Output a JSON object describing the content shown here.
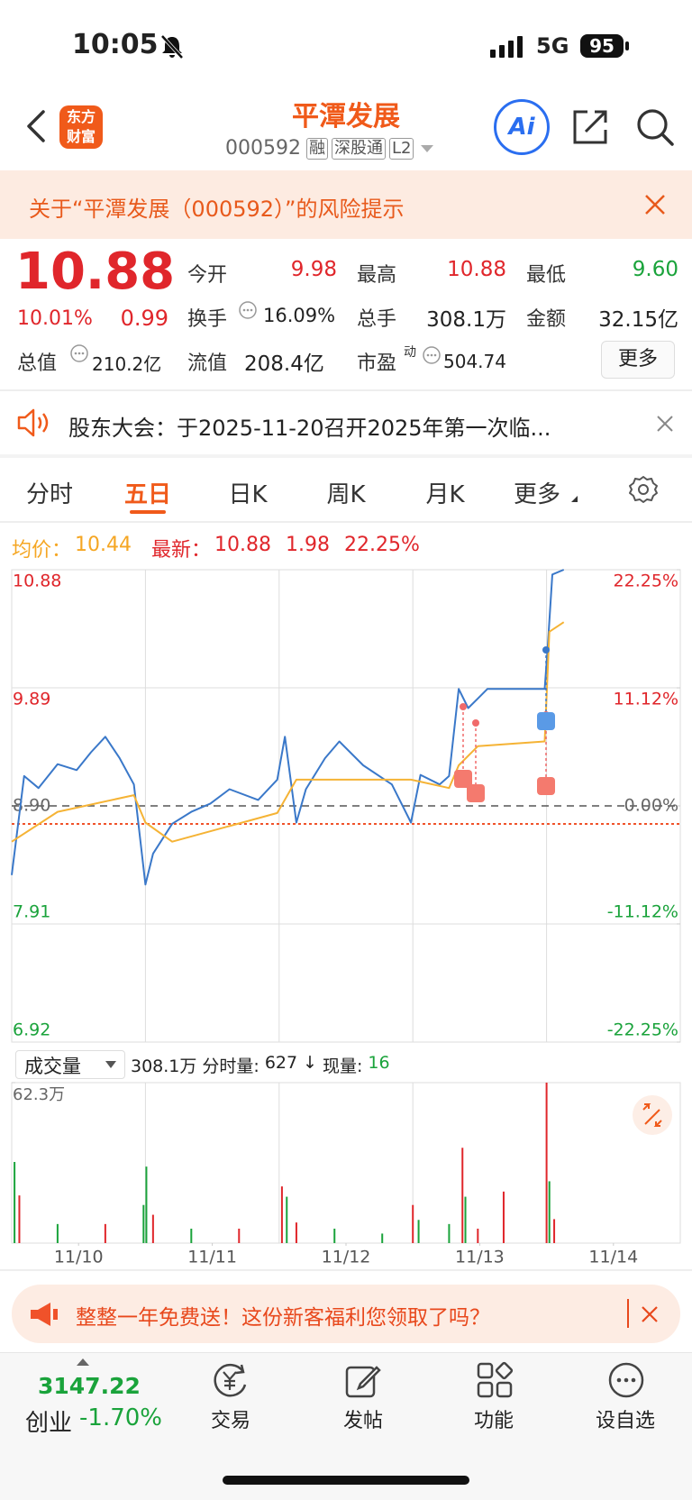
{
  "status": {
    "time": "10:05",
    "network": "5G",
    "battery": "95"
  },
  "header": {
    "logo_line1": "东方",
    "logo_line2": "财富",
    "title": "平潭发展",
    "code": "000592",
    "tags": [
      "融",
      "深股通",
      "L2"
    ],
    "ai": "Ai"
  },
  "risk_banner": {
    "text": "关于“平潭发展（000592）”的风险提示"
  },
  "quote": {
    "price": "10.88",
    "change_pct": "10.01%",
    "change": "0.99",
    "open_label": "今开",
    "open": "9.98",
    "high_label": "最高",
    "high": "10.88",
    "low_label": "最低",
    "low": "9.60",
    "turnover_label": "换手",
    "turnover": "16.09%",
    "volume_label": "总手",
    "volume": "308.1万",
    "amount_label": "金额",
    "amount": "32.15亿",
    "cap_label": "总值",
    "cap": "210.2亿",
    "float_label": "流值",
    "float": "208.4亿",
    "pe_label": "市盈",
    "pe_sup": "动",
    "pe": "504.74",
    "more": "更多"
  },
  "notice": {
    "text": "股东大会：于2025-11-20召开2025年第一次临..."
  },
  "tabs": {
    "items": [
      "分时",
      "五日",
      "日K",
      "周K",
      "月K",
      "更多"
    ],
    "active": 1
  },
  "stats": {
    "avg_label": "均价：",
    "avg": "10.44",
    "latest_label": "最新：",
    "latest": "10.88",
    "change": "1.98",
    "pct": "22.25%"
  },
  "chart_data": [
    {
      "type": "line",
      "xlim": [
        0,
        5
      ],
      "ylim": [
        6.92,
        10.88
      ],
      "yticks": [
        6.92,
        7.91,
        {
          "value": 8.9,
          "label": "8.90"
        },
        9.89,
        10.88
      ],
      "y2lim": [
        -22.25,
        22.25
      ],
      "y2ticks": [
        {
          "value": -22.25,
          "label": "-22.25%"
        },
        {
          "value": -11.12,
          "label": "-11.12%"
        },
        {
          "value": 0,
          "label": "0.00%"
        },
        {
          "value": 11.12,
          "label": "11.12%"
        },
        {
          "value": 22.25,
          "label": "22.25%"
        }
      ],
      "up_color": "#e0262b",
      "down_color": "#1aa33b",
      "series": [
        {
          "color": "#3a78c9",
          "x": [
            0,
            0.093,
            0.2,
            0.343,
            0.486,
            0.593,
            0.7,
            0.807,
            0.914,
            1.0,
            1.057,
            1.2,
            1.343,
            1.486,
            1.629,
            1.843,
            1.986,
            2.043,
            2.129,
            2.2,
            2.343,
            2.45,
            2.629,
            2.843,
            2.986,
            3.057,
            3.2,
            3.271,
            3.343,
            3.414,
            3.486,
            3.557,
            3.664,
            3.986,
            4.007,
            4.043,
            4.129
          ],
          "values": [
            8.32,
            9.15,
            9.05,
            9.25,
            9.2,
            9.35,
            9.48,
            9.3,
            9.08,
            8.24,
            8.5,
            8.75,
            8.85,
            8.92,
            9.04,
            8.95,
            9.12,
            9.48,
            8.76,
            9.04,
            9.3,
            9.44,
            9.24,
            9.08,
            8.76,
            9.16,
            9.08,
            9.15,
            9.88,
            9.72,
            9.8,
            9.88,
            9.88,
            9.88,
            10.2,
            10.84,
            10.88
          ]
        },
        {
          "color": "#f5b335",
          "x": [
            0,
            0.343,
            0.914,
            1.0,
            1.2,
            1.986,
            2.129,
            2.986,
            3.271,
            3.343,
            3.486,
            3.986,
            4.021,
            4.129
          ],
          "values": [
            8.6,
            8.85,
            8.99,
            8.76,
            8.6,
            8.84,
            9.12,
            9.12,
            9.05,
            9.24,
            9.4,
            9.44,
            10.36,
            10.44
          ]
        }
      ]
    },
    {
      "type": "bar",
      "title": "成交量",
      "total": "308.1万",
      "split_label": "分时量:",
      "split": "627",
      "arrow": "↓",
      "now_label": "现量:",
      "now": "16",
      "xlim": [
        0,
        5
      ],
      "xticks": [
        {
          "value": 0.5,
          "label": "11/10"
        },
        {
          "value": 1.5,
          "label": "11/11"
        },
        {
          "value": 2.5,
          "label": "11/12"
        },
        {
          "value": 3.5,
          "label": "11/13"
        },
        {
          "value": 4.5,
          "label": "11/14"
        }
      ],
      "ylim": [
        0,
        62.3
      ],
      "yticks": [
        {
          "value": 62.3,
          "label": "62.3万"
        }
      ],
      "x": [
        0.021,
        0.057,
        0.343,
        0.7,
        0.986,
        1.007,
        1.057,
        1.343,
        1.7,
        2.021,
        2.057,
        2.129,
        2.414,
        2.771,
        3.0,
        3.043,
        3.271,
        3.371,
        3.393,
        3.486,
        3.679,
        4.0,
        4.021,
        4.057
      ],
      "values": [
        31.5,
        18.5,
        7.4,
        7.4,
        14.8,
        29.7,
        11,
        5.6,
        5.6,
        22,
        18,
        8,
        5.6,
        3.7,
        14.8,
        9,
        7.4,
        37,
        18,
        5.6,
        20,
        62.3,
        24,
        9.3
      ],
      "colors": [
        "#1aa33b",
        "#e0262b",
        "#1aa33b",
        "#e0262b",
        "#1aa33b",
        "#1aa33b",
        "#e0262b",
        "#1aa33b",
        "#e0262b",
        "#e0262b",
        "#1aa33b",
        "#e0262b",
        "#1aa33b",
        "#1aa33b",
        "#e0262b",
        "#1aa33b",
        "#1aa33b",
        "#e0262b",
        "#1aa33b",
        "#e0262b",
        "#e0262b",
        "#e0262b",
        "#1aa33b",
        "#e0262b"
      ]
    }
  ],
  "promo": {
    "text": "整整一年免费送！这份新客福利您领取了吗？"
  },
  "nav": {
    "index": "3147.22",
    "index_name": "创业",
    "index_change": "-1.70%",
    "items": [
      "交易",
      "发帖",
      "功能",
      "设自选"
    ]
  }
}
